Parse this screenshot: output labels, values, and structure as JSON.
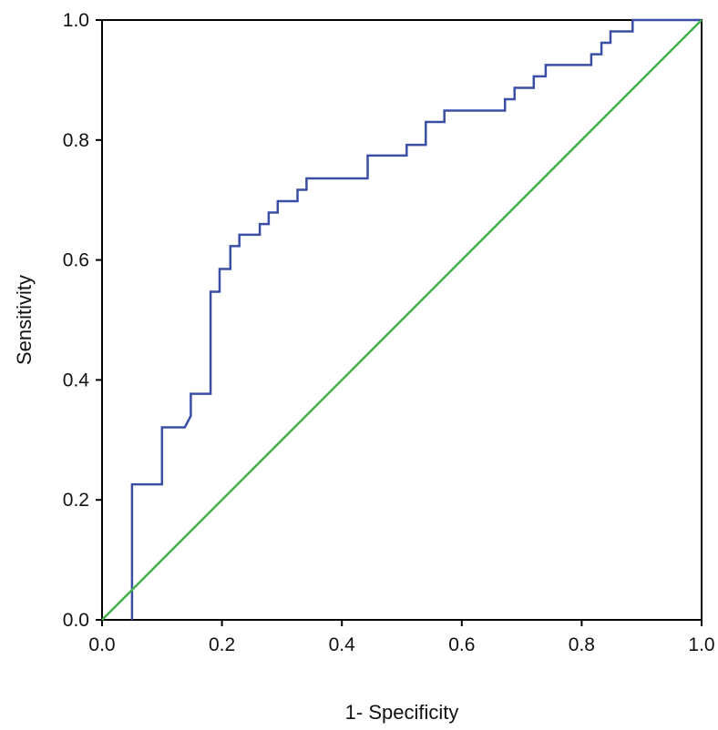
{
  "chart_data": {
    "type": "line",
    "title": "",
    "xlabel": "1- Specificity",
    "ylabel": "Sensitivity",
    "xlim": [
      0,
      1
    ],
    "ylim": [
      0,
      1
    ],
    "xticks": [
      "0.0",
      "0.2",
      "0.4",
      "0.6",
      "0.8",
      "1.0"
    ],
    "yticks": [
      "0.0",
      "0.2",
      "0.4",
      "0.6",
      "0.8",
      "1.0"
    ],
    "grid": false,
    "legend": "none",
    "series": [
      {
        "color": "#3b4ea6",
        "step": true,
        "points": [
          [
            0.05,
            0.0
          ],
          [
            0.05,
            0.226
          ],
          [
            0.1,
            0.226
          ],
          [
            0.1,
            0.321
          ],
          [
            0.138,
            0.321
          ],
          [
            0.148,
            0.34
          ],
          [
            0.148,
            0.377
          ],
          [
            0.181,
            0.377
          ],
          [
            0.181,
            0.547
          ],
          [
            0.196,
            0.547
          ],
          [
            0.196,
            0.585
          ],
          [
            0.214,
            0.585
          ],
          [
            0.214,
            0.623
          ],
          [
            0.229,
            0.623
          ],
          [
            0.229,
            0.642
          ],
          [
            0.263,
            0.642
          ],
          [
            0.263,
            0.66
          ],
          [
            0.278,
            0.66
          ],
          [
            0.278,
            0.679
          ],
          [
            0.293,
            0.679
          ],
          [
            0.293,
            0.698
          ],
          [
            0.326,
            0.698
          ],
          [
            0.326,
            0.717
          ],
          [
            0.341,
            0.717
          ],
          [
            0.341,
            0.736
          ],
          [
            0.443,
            0.736
          ],
          [
            0.443,
            0.774
          ],
          [
            0.508,
            0.774
          ],
          [
            0.508,
            0.792
          ],
          [
            0.54,
            0.792
          ],
          [
            0.54,
            0.83
          ],
          [
            0.571,
            0.83
          ],
          [
            0.571,
            0.849
          ],
          [
            0.672,
            0.849
          ],
          [
            0.672,
            0.868
          ],
          [
            0.688,
            0.868
          ],
          [
            0.688,
            0.887
          ],
          [
            0.72,
            0.887
          ],
          [
            0.72,
            0.906
          ],
          [
            0.74,
            0.906
          ],
          [
            0.74,
            0.925
          ],
          [
            0.816,
            0.925
          ],
          [
            0.816,
            0.943
          ],
          [
            0.833,
            0.943
          ],
          [
            0.833,
            0.962
          ],
          [
            0.848,
            0.962
          ],
          [
            0.848,
            0.981
          ],
          [
            0.885,
            0.981
          ],
          [
            0.885,
            1.0
          ],
          [
            1.0,
            1.0
          ]
        ]
      },
      {
        "color": "#43b049",
        "step": false,
        "points": [
          [
            0,
            0
          ],
          [
            1,
            1
          ]
        ]
      }
    ]
  }
}
